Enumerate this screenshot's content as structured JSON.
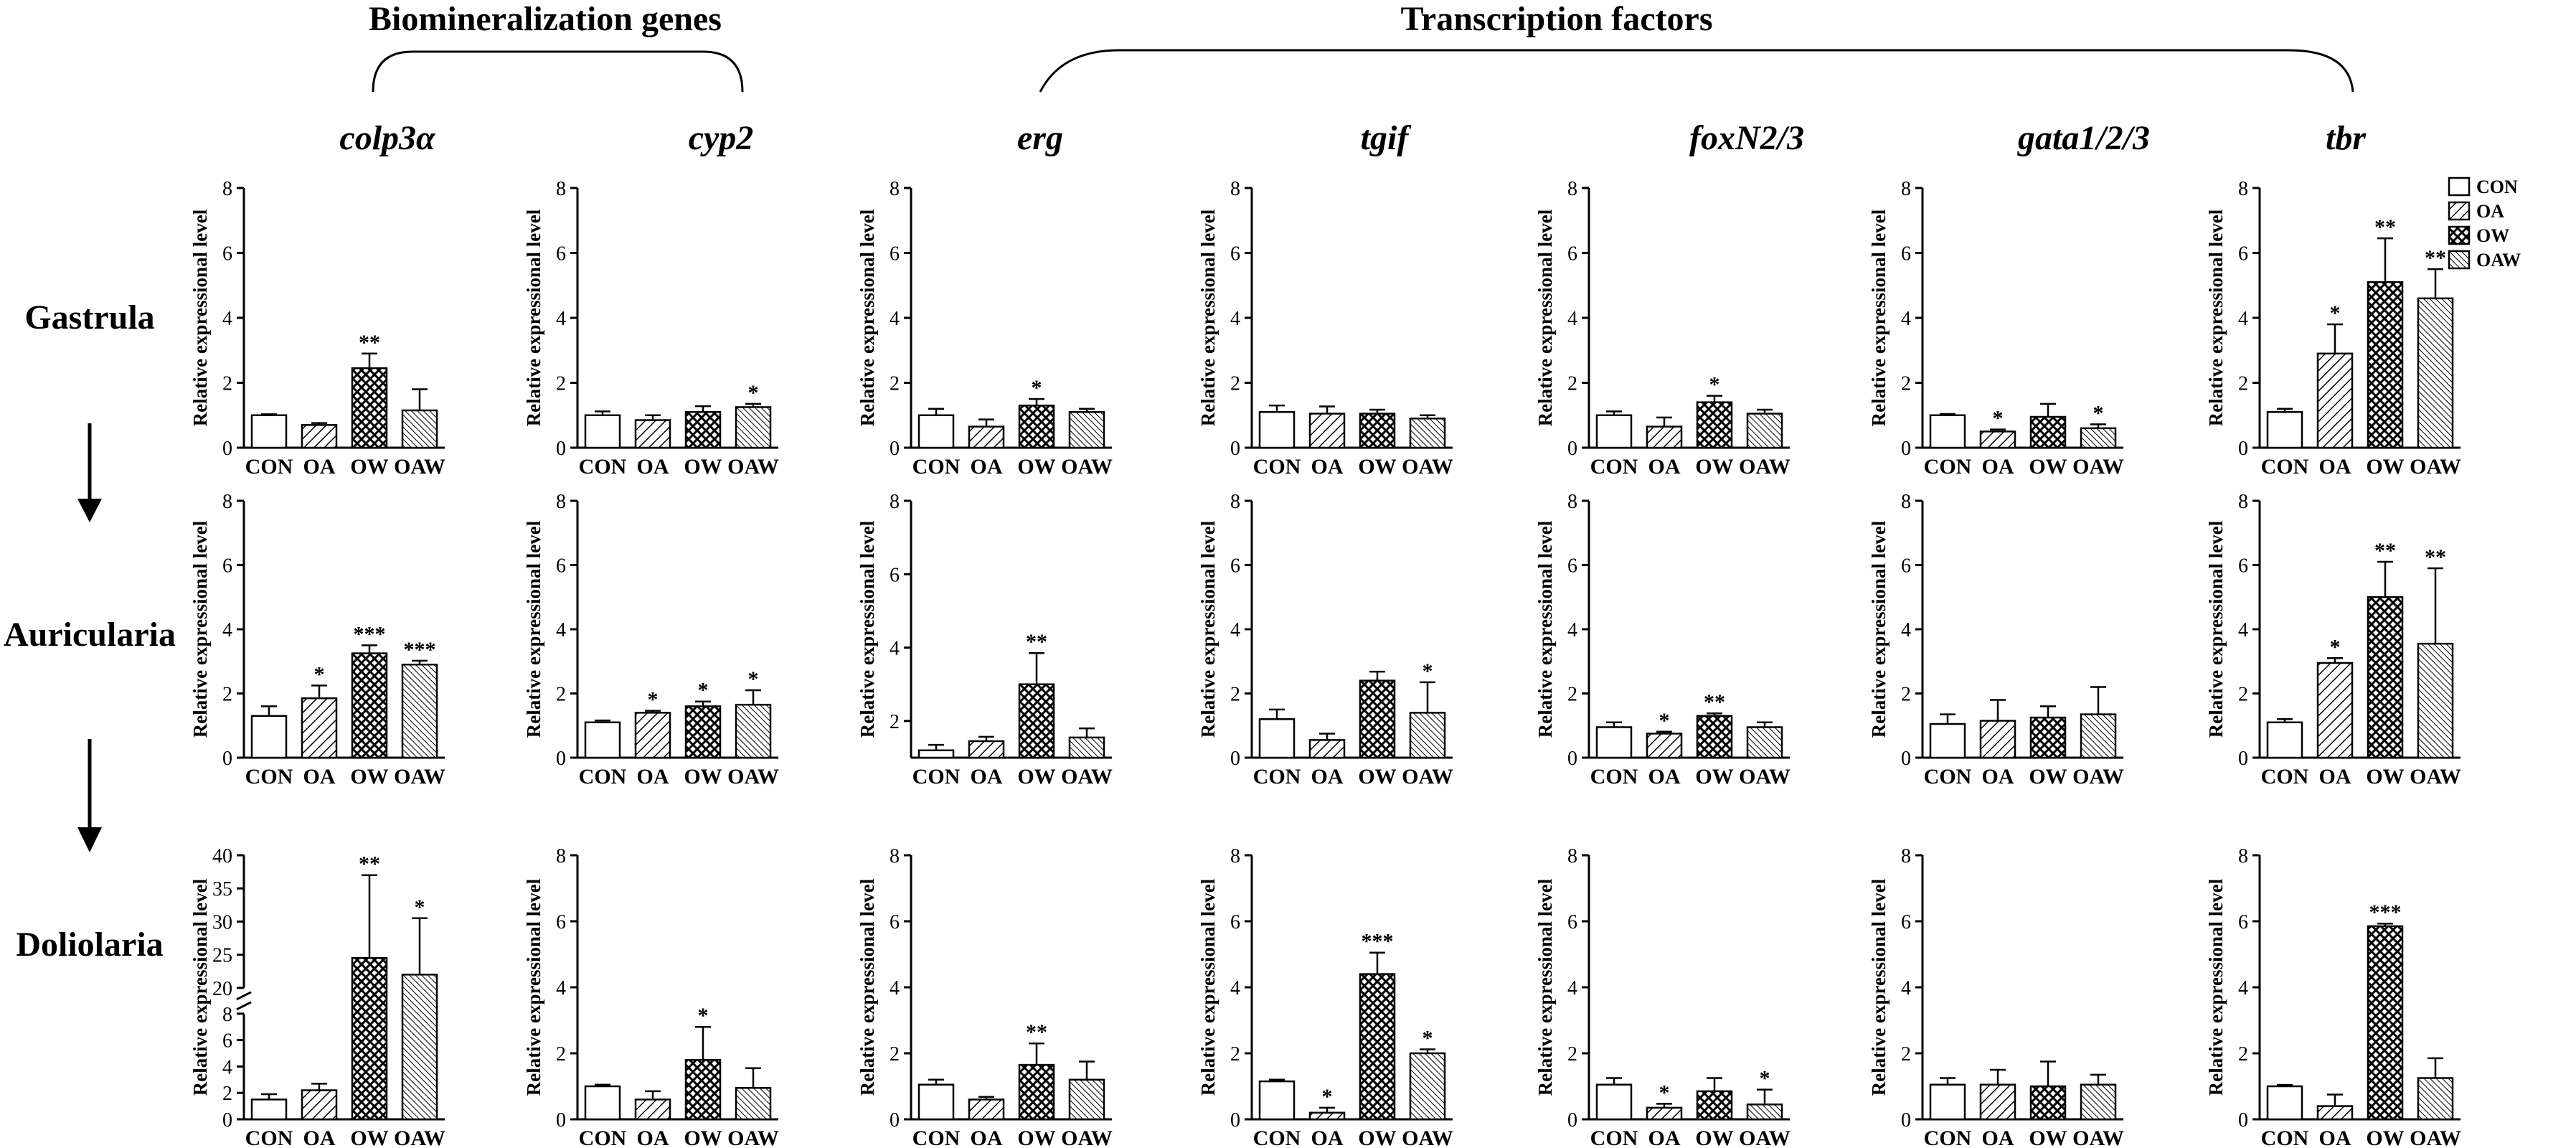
{
  "headers": {
    "biomineralization": "Biomineralization genes",
    "transcription": "Transcription factors"
  },
  "genes": [
    "colp3α",
    "cyp2",
    "erg",
    "tgif",
    "foxN2/3",
    "gata1/2/3",
    "tbr"
  ],
  "stages": [
    "Gastrula",
    "Auricularia",
    "Doliolaria"
  ],
  "ylabel": "Relative  expressional level",
  "categories": [
    "CON",
    "OA",
    "OW",
    "OAW"
  ],
  "legend": [
    {
      "label": "CON",
      "pattern": "none"
    },
    {
      "label": "OA",
      "pattern": "diagonal"
    },
    {
      "label": "OW",
      "pattern": "cross"
    },
    {
      "label": "OAW",
      "pattern": "dense-diagonal"
    }
  ],
  "chart_data": [
    {
      "type": "bar",
      "gene": "colp3α",
      "stage": "Gastrula",
      "ylim": [
        0,
        8
      ],
      "ticks": [
        0,
        2,
        4,
        6,
        8
      ],
      "values": [
        1.0,
        0.7,
        2.45,
        1.15
      ],
      "errors": [
        0.03,
        0.06,
        0.45,
        0.65
      ],
      "sig": [
        "",
        "",
        "**",
        ""
      ]
    },
    {
      "type": "bar",
      "gene": "cyp2",
      "stage": "Gastrula",
      "ylim": [
        0,
        8
      ],
      "ticks": [
        0,
        2,
        4,
        6,
        8
      ],
      "values": [
        1.0,
        0.85,
        1.1,
        1.25
      ],
      "errors": [
        0.12,
        0.15,
        0.18,
        0.1
      ],
      "sig": [
        "",
        "",
        "",
        "*"
      ]
    },
    {
      "type": "bar",
      "gene": "erg",
      "stage": "Gastrula",
      "ylim": [
        0,
        8
      ],
      "ticks": [
        0,
        2,
        4,
        6,
        8
      ],
      "values": [
        1.0,
        0.65,
        1.3,
        1.1
      ],
      "errors": [
        0.2,
        0.22,
        0.2,
        0.1
      ],
      "sig": [
        "",
        "",
        "*",
        ""
      ]
    },
    {
      "type": "bar",
      "gene": "tgif",
      "stage": "Gastrula",
      "ylim": [
        0,
        8
      ],
      "ticks": [
        0,
        2,
        4,
        6,
        8
      ],
      "values": [
        1.1,
        1.05,
        1.05,
        0.9
      ],
      "errors": [
        0.2,
        0.22,
        0.12,
        0.1
      ],
      "sig": [
        "",
        "",
        "",
        ""
      ]
    },
    {
      "type": "bar",
      "gene": "foxN2/3",
      "stage": "Gastrula",
      "ylim": [
        0,
        8
      ],
      "ticks": [
        0,
        2,
        4,
        6,
        8
      ],
      "values": [
        1.0,
        0.65,
        1.4,
        1.05
      ],
      "errors": [
        0.12,
        0.28,
        0.2,
        0.12
      ],
      "sig": [
        "",
        "",
        "*",
        ""
      ]
    },
    {
      "type": "bar",
      "gene": "gata1/2/3",
      "stage": "Gastrula",
      "ylim": [
        0,
        8
      ],
      "ticks": [
        0,
        2,
        4,
        6,
        8
      ],
      "values": [
        1.0,
        0.5,
        0.95,
        0.6
      ],
      "errors": [
        0.04,
        0.06,
        0.4,
        0.12
      ],
      "sig": [
        "",
        "*",
        "",
        "*"
      ]
    },
    {
      "type": "bar",
      "gene": "tbr",
      "stage": "Gastrula",
      "ylim": [
        0,
        8
      ],
      "ticks": [
        0,
        2,
        4,
        6,
        8
      ],
      "values": [
        1.1,
        2.9,
        5.1,
        4.6
      ],
      "errors": [
        0.1,
        0.9,
        1.35,
        0.9
      ],
      "sig": [
        "",
        "*",
        "**",
        "**"
      ]
    },
    {
      "type": "bar",
      "gene": "colp3α",
      "stage": "Auricularia",
      "ylim": [
        0,
        8
      ],
      "ticks": [
        0,
        2,
        4,
        6,
        8
      ],
      "values": [
        1.3,
        1.85,
        3.25,
        2.9
      ],
      "errors": [
        0.3,
        0.4,
        0.25,
        0.12
      ],
      "sig": [
        "",
        "*",
        "***",
        "***"
      ]
    },
    {
      "type": "bar",
      "gene": "cyp2",
      "stage": "Auricularia",
      "ylim": [
        0,
        8
      ],
      "ticks": [
        0,
        2,
        4,
        6,
        8
      ],
      "values": [
        1.1,
        1.4,
        1.6,
        1.65
      ],
      "errors": [
        0.06,
        0.06,
        0.15,
        0.45
      ],
      "sig": [
        "",
        "*",
        "*",
        "*"
      ]
    },
    {
      "type": "bar",
      "gene": "erg",
      "stage": "Auricularia",
      "ylim": [
        1,
        8
      ],
      "ticks": [
        2,
        4,
        6,
        8
      ],
      "values": [
        1.2,
        1.45,
        3.0,
        1.55
      ],
      "errors": [
        0.15,
        0.12,
        0.85,
        0.25
      ],
      "sig": [
        "",
        "",
        "**",
        ""
      ]
    },
    {
      "type": "bar",
      "gene": "tgif",
      "stage": "Auricularia",
      "ylim": [
        0,
        8
      ],
      "ticks": [
        0,
        2,
        4,
        6,
        8
      ],
      "values": [
        1.2,
        0.55,
        2.4,
        1.4
      ],
      "errors": [
        0.3,
        0.2,
        0.28,
        0.95
      ],
      "sig": [
        "",
        "",
        "",
        "*"
      ]
    },
    {
      "type": "bar",
      "gene": "foxN2/3",
      "stage": "Auricularia",
      "ylim": [
        0,
        8
      ],
      "ticks": [
        0,
        2,
        4,
        6,
        8
      ],
      "values": [
        0.95,
        0.75,
        1.3,
        0.95
      ],
      "errors": [
        0.15,
        0.06,
        0.08,
        0.15
      ],
      "sig": [
        "",
        "*",
        "**",
        ""
      ]
    },
    {
      "type": "bar",
      "gene": "gata1/2/3",
      "stage": "Auricularia",
      "ylim": [
        0,
        8
      ],
      "ticks": [
        0,
        2,
        4,
        6,
        8
      ],
      "values": [
        1.05,
        1.15,
        1.25,
        1.35
      ],
      "errors": [
        0.3,
        0.65,
        0.35,
        0.85
      ],
      "sig": [
        "",
        "",
        "",
        ""
      ]
    },
    {
      "type": "bar",
      "gene": "tbr",
      "stage": "Auricularia",
      "ylim": [
        0,
        8
      ],
      "ticks": [
        0,
        2,
        4,
        6,
        8
      ],
      "values": [
        1.1,
        2.95,
        5.0,
        3.55
      ],
      "errors": [
        0.1,
        0.15,
        1.1,
        2.35
      ],
      "sig": [
        "",
        "*",
        "**",
        "**"
      ]
    },
    {
      "type": "bar",
      "gene": "colp3α",
      "stage": "Doliolaria",
      "ylim": [
        0,
        40
      ],
      "ticks": [
        0,
        2,
        4,
        6,
        8,
        20,
        25,
        30,
        35,
        40
      ],
      "broken_axis": {
        "lower": [
          0,
          8
        ],
        "upper": [
          20,
          40
        ]
      },
      "values": [
        1.5,
        2.2,
        24.5,
        22.0
      ],
      "errors": [
        0.4,
        0.5,
        12.5,
        8.5
      ],
      "sig": [
        "",
        "",
        "**",
        "*"
      ]
    },
    {
      "type": "bar",
      "gene": "cyp2",
      "stage": "Doliolaria",
      "ylim": [
        0,
        8
      ],
      "ticks": [
        0,
        2,
        4,
        6,
        8
      ],
      "values": [
        1.0,
        0.6,
        1.8,
        0.95
      ],
      "errors": [
        0.05,
        0.25,
        1.0,
        0.6
      ],
      "sig": [
        "",
        "",
        "*",
        ""
      ]
    },
    {
      "type": "bar",
      "gene": "erg",
      "stage": "Doliolaria",
      "ylim": [
        0,
        8
      ],
      "ticks": [
        0,
        2,
        4,
        6,
        8
      ],
      "values": [
        1.05,
        0.6,
        1.65,
        1.2
      ],
      "errors": [
        0.15,
        0.08,
        0.65,
        0.55
      ],
      "sig": [
        "",
        "",
        "**",
        ""
      ]
    },
    {
      "type": "bar",
      "gene": "tgif",
      "stage": "Doliolaria",
      "ylim": [
        0,
        8
      ],
      "ticks": [
        0,
        2,
        4,
        6,
        8
      ],
      "values": [
        1.15,
        0.2,
        4.4,
        2.0
      ],
      "errors": [
        0.05,
        0.15,
        0.65,
        0.12
      ],
      "sig": [
        "",
        "*",
        "***",
        "*"
      ]
    },
    {
      "type": "bar",
      "gene": "foxN2/3",
      "stage": "Doliolaria",
      "ylim": [
        0,
        8
      ],
      "ticks": [
        0,
        2,
        4,
        6,
        8
      ],
      "values": [
        1.05,
        0.35,
        0.85,
        0.45
      ],
      "errors": [
        0.2,
        0.12,
        0.4,
        0.45
      ],
      "sig": [
        "",
        "*",
        "",
        "*"
      ]
    },
    {
      "type": "bar",
      "gene": "gata1/2/3",
      "stage": "Doliolaria",
      "ylim": [
        0,
        8
      ],
      "ticks": [
        0,
        2,
        4,
        6,
        8
      ],
      "values": [
        1.05,
        1.05,
        1.0,
        1.05
      ],
      "errors": [
        0.2,
        0.45,
        0.75,
        0.3
      ],
      "sig": [
        "",
        "",
        "",
        ""
      ]
    },
    {
      "type": "bar",
      "gene": "tbr",
      "stage": "Doliolaria",
      "ylim": [
        0,
        8
      ],
      "ticks": [
        0,
        2,
        4,
        6,
        8
      ],
      "values": [
        1.0,
        0.4,
        5.85,
        1.25
      ],
      "errors": [
        0.04,
        0.35,
        0.08,
        0.6
      ],
      "sig": [
        "",
        "",
        "***",
        ""
      ]
    }
  ]
}
